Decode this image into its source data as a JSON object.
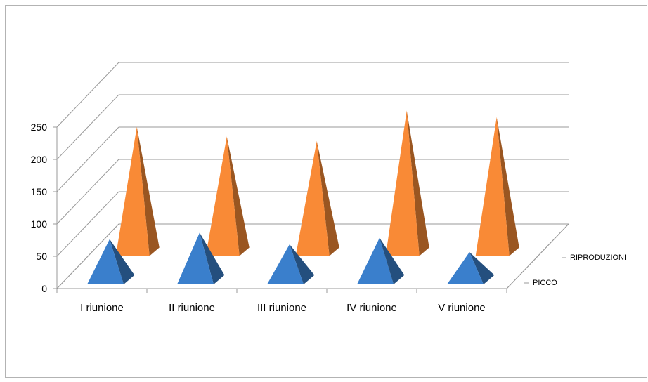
{
  "chart_data": {
    "type": "bar",
    "style": "3d-pyramid",
    "categories": [
      "I riunione",
      "II riunione",
      "III riunione",
      "IV riunione",
      "V riunione"
    ],
    "series": [
      {
        "name": "PICCO",
        "values": [
          70,
          80,
          62,
          72,
          50
        ],
        "color": "#3a7fcc"
      },
      {
        "name": "RIPRODUZIONI",
        "values": [
          200,
          185,
          178,
          225,
          215
        ],
        "color": "#f98a36"
      }
    ],
    "yticks": [
      "0",
      "50",
      "100",
      "150",
      "200",
      "250"
    ],
    "ylim": [
      0,
      250
    ],
    "grid": true,
    "title": "",
    "xlabel": "",
    "ylabel": ""
  }
}
